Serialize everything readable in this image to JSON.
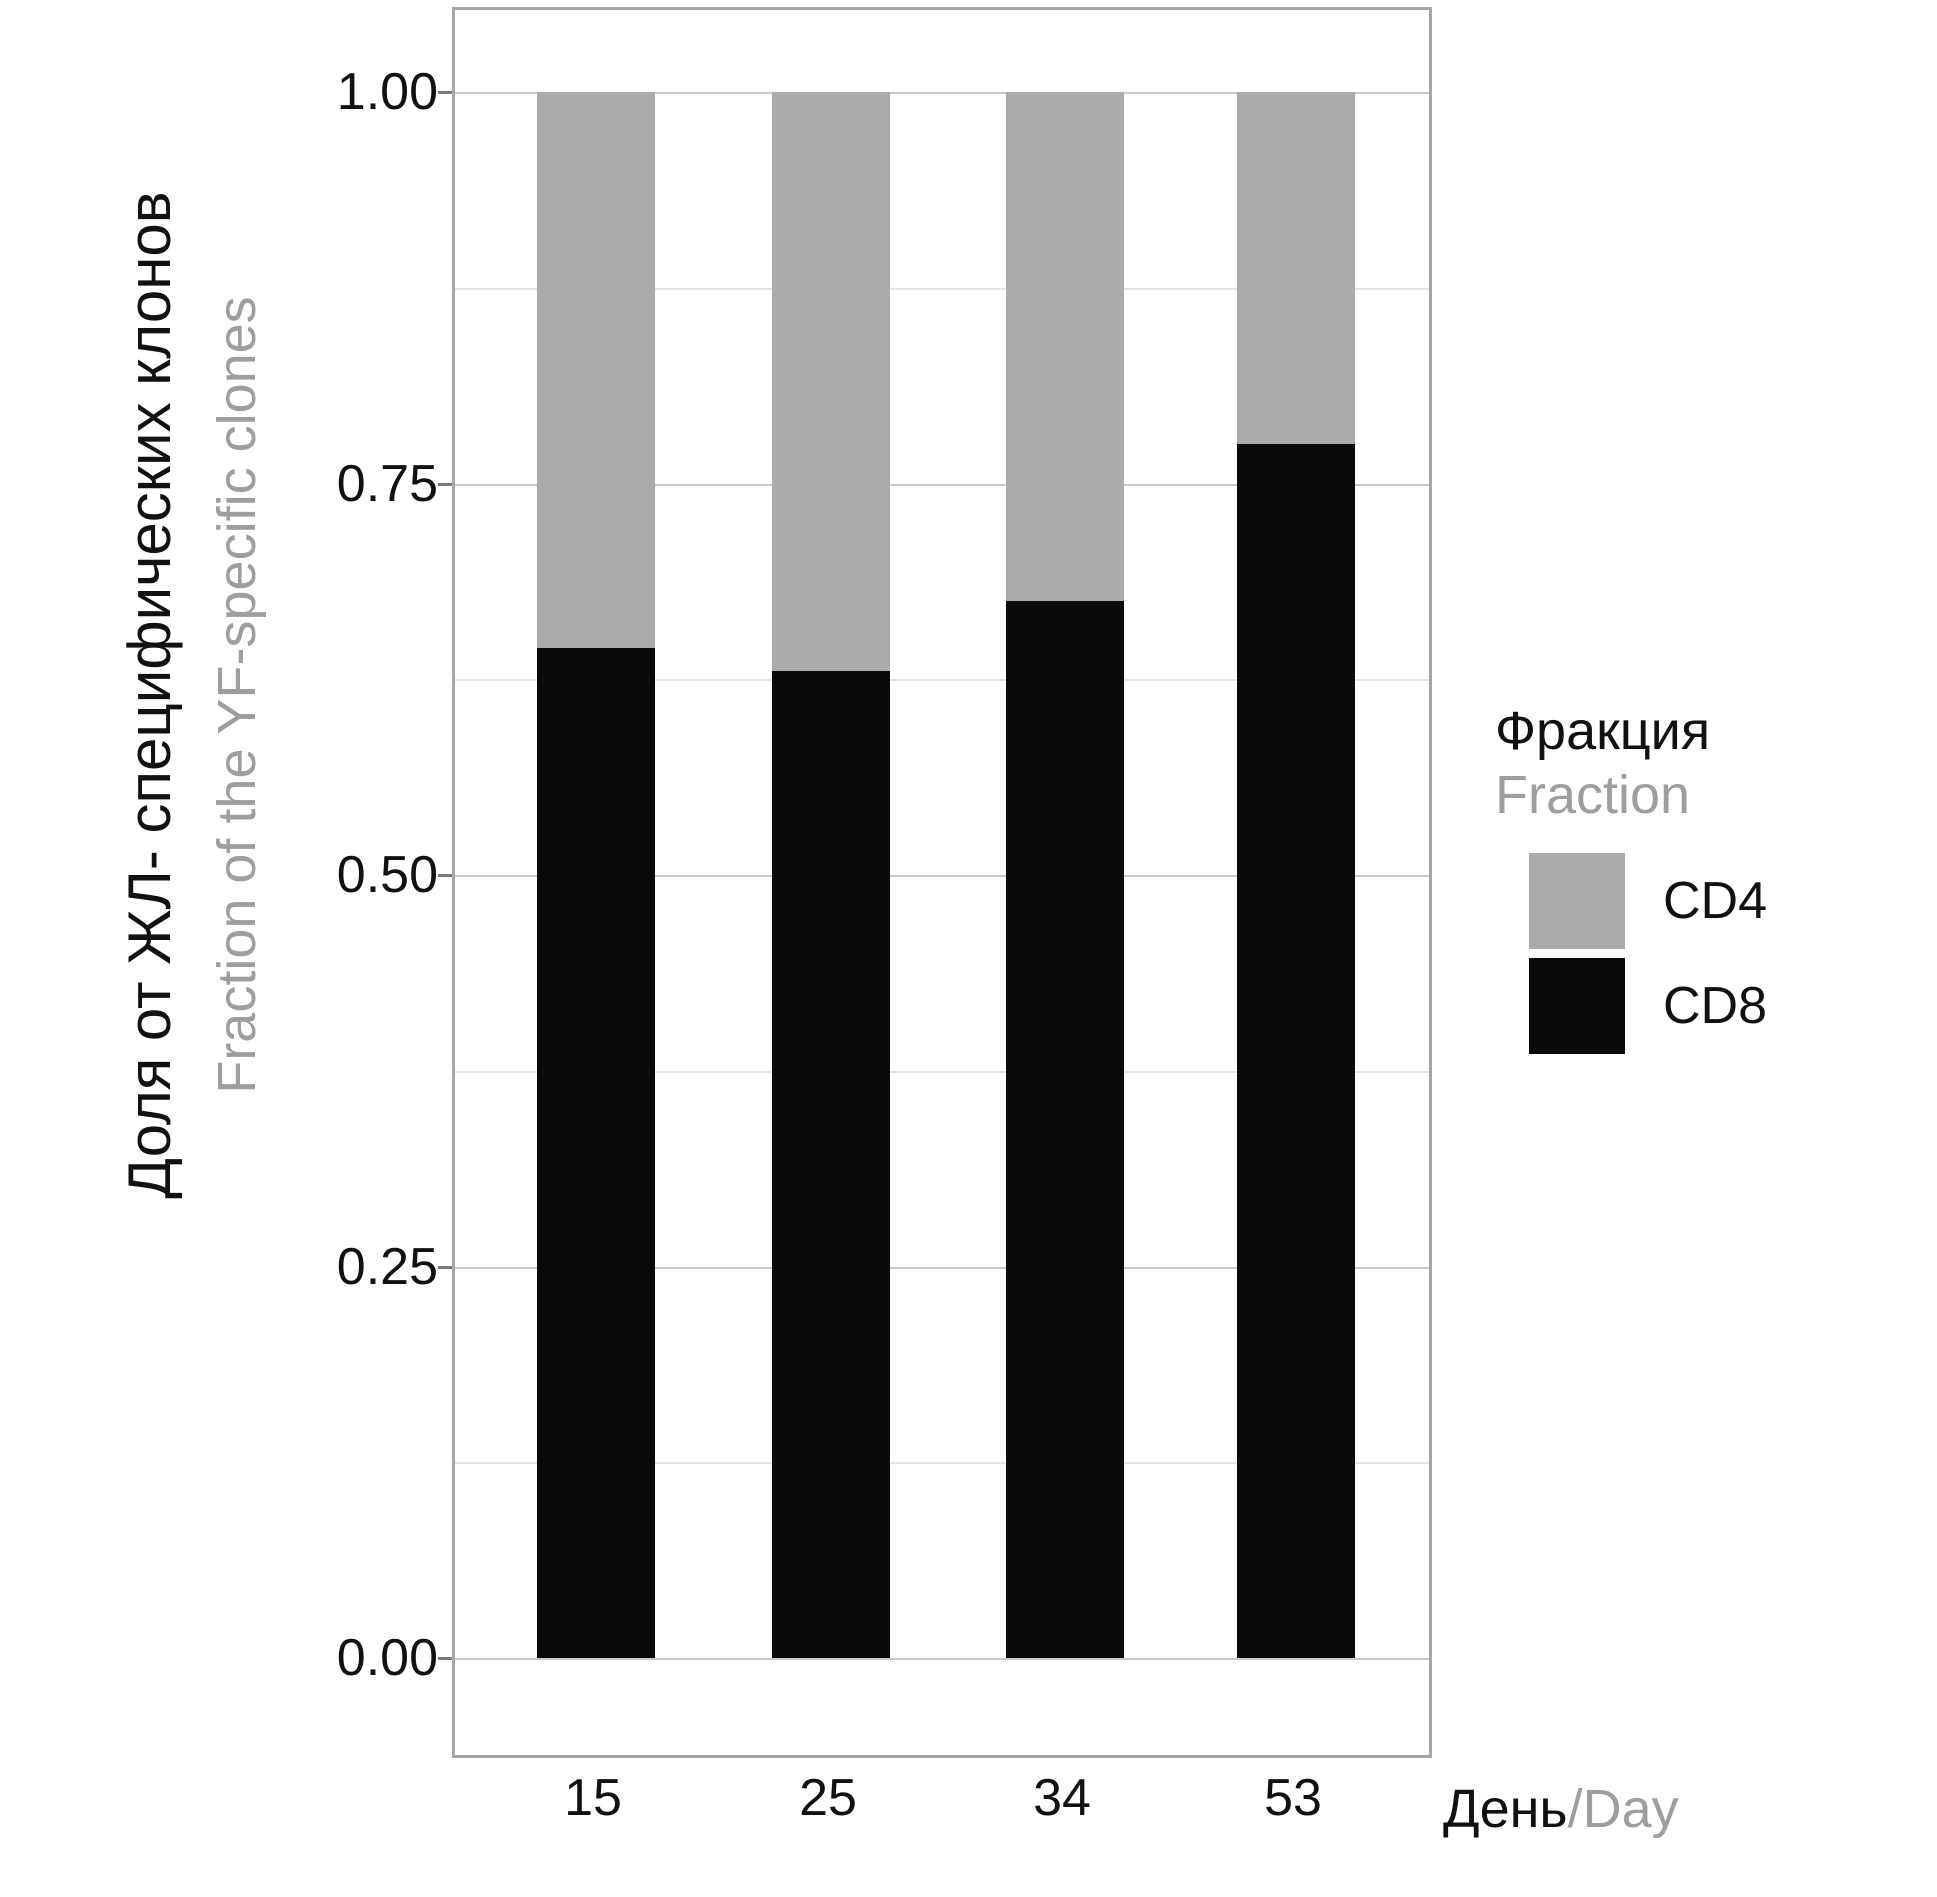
{
  "colors": {
    "cd4": "#ABABAD",
    "cd8": "#0a0a0a",
    "grid_major": "#c9c9c9",
    "grid_minor": "#e4e4e4",
    "panel_border": "#a6a6a6",
    "text_black": "#111111",
    "text_gray": "#9e9e9e"
  },
  "y_axis": {
    "title_ru": "Доля от ЖЛ- специфических клонов",
    "title_en": "Fraction of the YF-specific clones",
    "tick_labels": [
      "1.00",
      "0.75",
      "0.50",
      "0.25",
      "0.00"
    ],
    "tick_values": [
      1.0,
      0.75,
      0.5,
      0.25,
      0.0
    ]
  },
  "x_axis": {
    "title_ru": "День",
    "title_en": "/Day",
    "tick_labels": [
      "15",
      "25",
      "34",
      "53"
    ]
  },
  "legend": {
    "title_ru": "Фракция",
    "title_en": "Fraction",
    "items": [
      {
        "label": "CD4",
        "color_key": "cd4"
      },
      {
        "label": "CD8",
        "color_key": "cd8"
      }
    ]
  },
  "chart_data": {
    "type": "bar",
    "stacked": true,
    "categories": [
      "15",
      "25",
      "34",
      "53"
    ],
    "series": [
      {
        "name": "CD8",
        "color_key": "cd8",
        "values": [
          0.645,
          0.63,
          0.675,
          0.775
        ]
      },
      {
        "name": "CD4",
        "color_key": "cd4",
        "values": [
          0.355,
          0.37,
          0.325,
          0.225
        ]
      }
    ],
    "title": "",
    "xlabel": "День/Day",
    "ylabel": "Доля от ЖЛ- специфических клонов / Fraction of the YF-specific clones",
    "ylim": [
      0,
      1
    ],
    "y_major_step": 0.25,
    "y_minor_step": 0.125,
    "grid": true,
    "legend_position": "right"
  }
}
